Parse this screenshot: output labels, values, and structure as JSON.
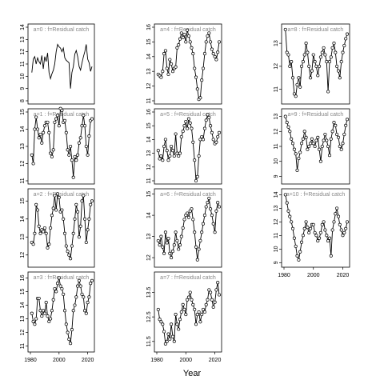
{
  "figure": {
    "xlabel": "Year"
  },
  "chart_data": [
    {
      "type": "line",
      "title": "a=0 : f=Residual catch",
      "xlim": [
        1980,
        2023
      ],
      "ylim": [
        8,
        14
      ],
      "yticks": [
        8,
        9,
        10,
        11,
        12,
        13,
        14
      ],
      "xticks": [],
      "points": false,
      "x": [
        1981,
        1982,
        1983,
        1984,
        1985,
        1986,
        1987,
        1988,
        1989,
        1990,
        1991,
        1992,
        1993,
        1994,
        1995,
        1996,
        1997,
        1998,
        1999,
        2000,
        2001,
        2002,
        2003,
        2004,
        2005,
        2006,
        2007,
        2008,
        2009,
        2010,
        2011,
        2012,
        2013,
        2014,
        2015,
        2016,
        2017,
        2018,
        2019,
        2020,
        2021,
        2022,
        2023
      ],
      "y": [
        10.3,
        11.4,
        11.6,
        11.0,
        11.5,
        11.2,
        11.0,
        11.7,
        10.6,
        11.6,
        11.2,
        11.9,
        10.3,
        9.8,
        10.2,
        10.5,
        11.0,
        12.0,
        12.6,
        12.4,
        12.3,
        12.0,
        12.3,
        11.5,
        11.3,
        11.2,
        11.1,
        9.0,
        10.3,
        10.8,
        11.8,
        12.1,
        11.6,
        10.8,
        10.5,
        11.1,
        11.6,
        12.0,
        12.6,
        11.4,
        11.1,
        10.4,
        10.8
      ]
    },
    {
      "type": "line",
      "title": "a=1 : f=Residual catch",
      "xlim": [
        1980,
        2023
      ],
      "ylim": [
        11,
        15
      ],
      "yticks": [
        11,
        12,
        13,
        14,
        15
      ],
      "xticks": [],
      "points": true,
      "x": [
        1981,
        1982,
        1983,
        1984,
        1985,
        1986,
        1987,
        1988,
        1989,
        1990,
        1991,
        1992,
        1993,
        1994,
        1995,
        1996,
        1997,
        1998,
        1999,
        2000,
        2001,
        2002,
        2003,
        2004,
        2005,
        2006,
        2007,
        2008,
        2009,
        2010,
        2011,
        2012,
        2013,
        2014,
        2015,
        2016,
        2017,
        2018,
        2019,
        2020,
        2021,
        2022,
        2023
      ],
      "y": [
        12.5,
        12.0,
        14.0,
        14.7,
        14.0,
        13.5,
        13.7,
        13.2,
        13.8,
        14.2,
        14.4,
        14.4,
        13.8,
        12.6,
        12.4,
        12.8,
        14.4,
        14.6,
        14.8,
        14.2,
        15.2,
        15.1,
        14.4,
        14.5,
        13.8,
        12.8,
        12.5,
        13.0,
        12.2,
        11.2,
        12.4,
        12.2,
        12.5,
        13.2,
        13.5,
        14.2,
        14.8,
        14.2,
        13.0,
        12.5,
        13.6,
        14.5,
        14.6
      ]
    },
    {
      "type": "line",
      "title": "a=2 : f=Residual catch",
      "xlim": [
        1980,
        2023
      ],
      "ylim": [
        11.5,
        15.5
      ],
      "yticks": [
        12,
        13,
        14,
        15
      ],
      "xticks": [],
      "points": true,
      "x": [
        1981,
        1982,
        1983,
        1984,
        1985,
        1986,
        1987,
        1988,
        1989,
        1990,
        1991,
        1992,
        1993,
        1994,
        1995,
        1996,
        1997,
        1998,
        1999,
        2000,
        2001,
        2002,
        2003,
        2004,
        2005,
        2006,
        2007,
        2008,
        2009,
        2010,
        2011,
        2012,
        2013,
        2014,
        2015,
        2016,
        2017,
        2018,
        2019,
        2020,
        2021,
        2022,
        2023
      ],
      "y": [
        12.7,
        12.6,
        13.2,
        14.8,
        14.5,
        13.6,
        13.2,
        13.4,
        13.3,
        13.5,
        13.2,
        12.4,
        12.6,
        13.5,
        14.2,
        14.6,
        15.3,
        14.5,
        15.4,
        15.2,
        14.4,
        14.5,
        14.0,
        13.2,
        12.5,
        12.2,
        12.0,
        11.8,
        12.5,
        13.2,
        14.0,
        14.8,
        14.4,
        13.0,
        13.6,
        15.0,
        15.3,
        14.0,
        12.7,
        13.4,
        14.0,
        14.8,
        15.0
      ]
    },
    {
      "type": "line",
      "title": "a=3 : f=Residual catch",
      "xlim": [
        1980,
        2023
      ],
      "ylim": [
        10.8,
        16.2
      ],
      "yticks": [
        11,
        12,
        13,
        14,
        15,
        16
      ],
      "xticks": [
        1980,
        2000,
        2020
      ],
      "points": true,
      "x": [
        1981,
        1982,
        1983,
        1984,
        1985,
        1986,
        1987,
        1988,
        1989,
        1990,
        1991,
        1992,
        1993,
        1994,
        1995,
        1996,
        1997,
        1998,
        1999,
        2000,
        2001,
        2002,
        2003,
        2004,
        2005,
        2006,
        2007,
        2008,
        2009,
        2010,
        2011,
        2012,
        2013,
        2014,
        2015,
        2016,
        2017,
        2018,
        2019,
        2020,
        2021,
        2022,
        2023
      ],
      "y": [
        13.4,
        12.8,
        12.6,
        13.0,
        14.5,
        14.5,
        13.6,
        13.2,
        13.6,
        13.4,
        14.2,
        13.2,
        12.8,
        13.0,
        13.6,
        14.4,
        15.2,
        15.0,
        15.6,
        16.0,
        15.4,
        15.2,
        14.8,
        13.6,
        12.6,
        12.0,
        11.5,
        11.2,
        12.2,
        13.6,
        14.0,
        14.6,
        15.4,
        15.8,
        15.4,
        14.8,
        14.6,
        13.6,
        13.4,
        14.2,
        14.6,
        15.6,
        15.8
      ]
    },
    {
      "type": "line",
      "title": "a=4 : f=Residual catch",
      "xlim": [
        1980,
        2023
      ],
      "ylim": [
        11,
        16
      ],
      "yticks": [
        11,
        12,
        13,
        14,
        15,
        16
      ],
      "xticks": [],
      "points": true,
      "x": [
        1981,
        1982,
        1983,
        1984,
        1985,
        1986,
        1987,
        1988,
        1989,
        1990,
        1991,
        1992,
        1993,
        1994,
        1995,
        1996,
        1997,
        1998,
        1999,
        2000,
        2001,
        2002,
        2003,
        2004,
        2005,
        2006,
        2007,
        2008,
        2009,
        2010,
        2011,
        2012,
        2013,
        2014,
        2015,
        2016,
        2017,
        2018,
        2019,
        2020,
        2021,
        2022,
        2023
      ],
      "y": [
        12.8,
        12.7,
        12.6,
        13.0,
        14.2,
        14.4,
        13.2,
        12.8,
        13.8,
        13.5,
        13.0,
        13.2,
        13.3,
        14.6,
        14.8,
        15.2,
        15.6,
        15.3,
        15.5,
        15.0,
        15.8,
        15.4,
        15.0,
        14.6,
        14.2,
        13.2,
        12.6,
        11.8,
        11.1,
        11.2,
        12.4,
        13.2,
        14.2,
        15.0,
        15.4,
        15.6,
        15.0,
        14.5,
        14.2,
        14.0,
        13.8,
        14.3,
        15.0
      ]
    },
    {
      "type": "line",
      "title": "a=5 : f=Residual catch",
      "xlim": [
        1980,
        2023
      ],
      "ylim": [
        11,
        16
      ],
      "yticks": [
        11,
        12,
        13,
        14,
        15,
        16
      ],
      "xticks": [],
      "points": true,
      "x": [
        1981,
        1982,
        1983,
        1984,
        1985,
        1986,
        1987,
        1988,
        1989,
        1990,
        1991,
        1992,
        1993,
        1994,
        1995,
        1996,
        1997,
        1998,
        1999,
        2000,
        2001,
        2002,
        2003,
        2004,
        2005,
        2006,
        2007,
        2008,
        2009,
        2010,
        2011,
        2012,
        2013,
        2014,
        2015,
        2016,
        2017,
        2018,
        2019,
        2020,
        2021,
        2022,
        2023
      ],
      "y": [
        13.2,
        12.6,
        12.8,
        12.5,
        13.5,
        14.0,
        13.2,
        12.5,
        12.8,
        13.5,
        13.2,
        12.8,
        14.4,
        13.0,
        12.8,
        13.0,
        14.2,
        14.6,
        15.0,
        15.3,
        14.8,
        15.5,
        15.2,
        14.8,
        13.8,
        12.5,
        11.0,
        11.3,
        12.8,
        14.0,
        14.2,
        14.0,
        14.8,
        15.4,
        15.8,
        15.6,
        15.0,
        14.5,
        14.0,
        13.7,
        13.8,
        14.2,
        14.5
      ]
    },
    {
      "type": "line",
      "title": "a=6 : f=Residual catch",
      "xlim": [
        1980,
        2023
      ],
      "ylim": [
        11.7,
        15.1
      ],
      "yticks": [
        12.0,
        13.0,
        14.0,
        15.0
      ],
      "xticks": [],
      "points": true,
      "x": [
        1981,
        1982,
        1983,
        1984,
        1985,
        1986,
        1987,
        1988,
        1989,
        1990,
        1991,
        1992,
        1993,
        1994,
        1995,
        1996,
        1997,
        1998,
        1999,
        2000,
        2001,
        2002,
        2003,
        2004,
        2005,
        2006,
        2007,
        2008,
        2009,
        2010,
        2011,
        2012,
        2013,
        2014,
        2015,
        2016,
        2017,
        2018,
        2019,
        2020,
        2021,
        2022,
        2023
      ],
      "y": [
        12.8,
        12.6,
        13.0,
        12.5,
        12.2,
        13.2,
        12.7,
        12.9,
        12.2,
        12.0,
        12.3,
        12.6,
        13.2,
        12.8,
        12.4,
        12.6,
        13.0,
        13.4,
        13.8,
        14.0,
        14.1,
        13.9,
        14.2,
        14.3,
        13.8,
        13.2,
        12.5,
        11.9,
        12.4,
        12.8,
        13.2,
        13.6,
        14.0,
        14.4,
        14.6,
        14.8,
        14.3,
        14.0,
        13.6,
        13.2,
        14.2,
        14.6,
        14.4
      ]
    },
    {
      "type": "line",
      "title": "a=7 : f=Residual catch",
      "xlim": [
        1980,
        2023
      ],
      "ylim": [
        11.2,
        14.2
      ],
      "yticks": [
        11.5,
        12.5,
        13.5
      ],
      "xticks": [
        1980,
        2000,
        2020
      ],
      "points": true,
      "x": [
        1981,
        1982,
        1983,
        1984,
        1985,
        1986,
        1987,
        1988,
        1989,
        1990,
        1991,
        1992,
        1993,
        1994,
        1995,
        1996,
        1997,
        1998,
        1999,
        2000,
        2001,
        2002,
        2003,
        2004,
        2005,
        2006,
        2007,
        2008,
        2009,
        2010,
        2011,
        2012,
        2013,
        2014,
        2015,
        2016,
        2017,
        2018,
        2019,
        2020,
        2021,
        2022,
        2023
      ],
      "y": [
        12.8,
        12.4,
        12.3,
        12.2,
        11.9,
        11.4,
        11.5,
        11.8,
        11.6,
        12.2,
        11.7,
        11.5,
        12.6,
        12.2,
        12.0,
        12.4,
        12.7,
        13.0,
        12.8,
        12.6,
        13.2,
        13.3,
        13.5,
        13.2,
        13.0,
        12.8,
        12.2,
        12.6,
        12.7,
        12.3,
        12.6,
        12.8,
        12.7,
        13.0,
        13.2,
        13.6,
        13.5,
        13.2,
        12.9,
        13.1,
        13.6,
        13.9,
        13.4
      ]
    },
    {
      "type": "line",
      "title": "a=8 : f=Residual catch",
      "xlim": [
        1980,
        2023
      ],
      "ylim": [
        10.5,
        13.7
      ],
      "yticks": [
        11.0,
        12.0,
        13.0
      ],
      "xticks": [],
      "points": true,
      "x": [
        1981,
        1982,
        1983,
        1984,
        1985,
        1986,
        1987,
        1988,
        1989,
        1990,
        1991,
        1992,
        1993,
        1994,
        1995,
        1996,
        1997,
        1998,
        1999,
        2000,
        2001,
        2002,
        2003,
        2004,
        2005,
        2006,
        2007,
        2008,
        2009,
        2010,
        2011,
        2012,
        2013,
        2014,
        2015,
        2016,
        2017,
        2018,
        2019,
        2020,
        2021,
        2022,
        2023
      ],
      "y": [
        13.6,
        12.6,
        12.5,
        12.0,
        12.2,
        11.5,
        10.8,
        10.7,
        11.2,
        11.5,
        11.1,
        12.0,
        12.2,
        12.5,
        13.0,
        12.6,
        12.0,
        11.5,
        11.8,
        12.5,
        12.2,
        12.0,
        11.6,
        12.0,
        12.4,
        12.6,
        12.8,
        12.5,
        12.2,
        10.9,
        12.2,
        12.4,
        12.8,
        13.0,
        12.6,
        12.0,
        11.8,
        11.5,
        12.2,
        12.6,
        12.9,
        13.2,
        13.4
      ]
    },
    {
      "type": "line",
      "title": "a=9 : f=Residual catch",
      "xlim": [
        1980,
        2023
      ],
      "ylim": [
        8.7,
        13.3
      ],
      "yticks": [
        9,
        10,
        11,
        12,
        13
      ],
      "xticks": [],
      "points": true,
      "x": [
        1981,
        1982,
        1983,
        1984,
        1985,
        1986,
        1987,
        1988,
        1989,
        1990,
        1991,
        1992,
        1993,
        1994,
        1995,
        1996,
        1997,
        1998,
        1999,
        2000,
        2001,
        2002,
        2003,
        2004,
        2005,
        2006,
        2007,
        2008,
        2009,
        2010,
        2011,
        2012,
        2013,
        2014,
        2015,
        2016,
        2017,
        2018,
        2019,
        2020,
        2021,
        2022,
        2023
      ],
      "y": [
        13.0,
        12.6,
        12.3,
        12.0,
        11.5,
        11.2,
        10.8,
        10.5,
        9.4,
        10.2,
        10.6,
        11.2,
        11.5,
        12.0,
        11.6,
        10.8,
        11.0,
        11.2,
        11.5,
        11.2,
        11.0,
        11.4,
        11.6,
        10.8,
        10.0,
        11.0,
        11.4,
        11.8,
        11.4,
        11.0,
        10.4,
        11.5,
        12.0,
        12.6,
        12.4,
        11.8,
        11.6,
        11.0,
        10.8,
        11.2,
        11.8,
        12.4,
        12.8
      ]
    },
    {
      "type": "line",
      "title": "a=10 : f=Residual catch",
      "xlim": [
        1980,
        2023
      ],
      "ylim": [
        8.9,
        14.2
      ],
      "yticks": [
        9,
        10,
        11,
        12,
        13,
        14
      ],
      "xticks": [
        1980,
        2000,
        2020
      ],
      "points": true,
      "x": [
        1981,
        1982,
        1983,
        1984,
        1985,
        1986,
        1987,
        1988,
        1989,
        1990,
        1991,
        1992,
        1993,
        1994,
        1995,
        1996,
        1997,
        1998,
        1999,
        2000,
        2001,
        2002,
        2003,
        2004,
        2005,
        2006,
        2007,
        2008,
        2009,
        2010,
        2011,
        2012,
        2013,
        2014,
        2015,
        2016,
        2017,
        2018,
        2019,
        2020,
        2021,
        2022,
        2023
      ],
      "y": [
        14.0,
        13.4,
        12.8,
        12.4,
        12.0,
        11.5,
        10.8,
        10.2,
        9.5,
        9.2,
        9.8,
        10.5,
        11.0,
        11.5,
        12.0,
        11.6,
        11.2,
        11.5,
        11.8,
        11.8,
        11.2,
        11.0,
        10.6,
        10.8,
        11.2,
        11.8,
        12.0,
        11.4,
        11.0,
        10.6,
        10.8,
        9.5,
        11.4,
        12.0,
        12.6,
        13.0,
        12.4,
        11.8,
        11.4,
        11.0,
        11.2,
        11.5,
        12.0
      ]
    }
  ]
}
